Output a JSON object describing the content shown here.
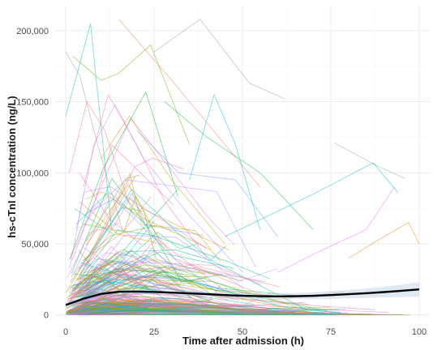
{
  "chart_data": {
    "type": "line",
    "xlabel": "Time after admission (h)",
    "ylabel": "hs-cTnI concentration (ng/L)",
    "xlim": [
      -3,
      103
    ],
    "ylim": [
      -3000,
      217000
    ],
    "x_ticks": [
      0,
      25,
      50,
      75,
      100
    ],
    "x_tick_labels": [
      "0",
      "25",
      "50",
      "75",
      "100"
    ],
    "y_ticks": [
      0,
      50000,
      100000,
      150000,
      200000
    ],
    "y_tick_labels": [
      "0",
      "50,000",
      "100,000",
      "150,000",
      "200,000"
    ],
    "grid": true,
    "legend": "none",
    "n_random_series": 300,
    "palette": [
      "#F8766D",
      "#E58700",
      "#C99800",
      "#A3A500",
      "#6BB100",
      "#00BA38",
      "#00BF7D",
      "#00C0AF",
      "#00BCD8",
      "#00B0F6",
      "#619CFF",
      "#B983FF",
      "#E76BF3",
      "#FD61D1",
      "#FF67A4",
      "#999999"
    ],
    "series": [
      {
        "x": [
          0,
          7,
          13
        ],
        "y": [
          140000,
          205000,
          60000
        ],
        "color": "#00C0AF"
      },
      {
        "x": [
          15,
          30,
          55
        ],
        "y": [
          208000,
          165000,
          90000
        ],
        "color": "#F8766D"
      },
      {
        "x": [
          25,
          38,
          52,
          62
        ],
        "y": [
          185000,
          208000,
          163000,
          152000
        ],
        "color": "#999999"
      },
      {
        "x": [
          2,
          10,
          15,
          24,
          35
        ],
        "y": [
          182000,
          165000,
          170000,
          190000,
          120000
        ],
        "color": "#6BB100"
      },
      {
        "x": [
          0,
          4,
          9,
          16
        ],
        "y": [
          185000,
          168000,
          120000,
          60000
        ],
        "color": "#999999"
      },
      {
        "x": [
          5,
          12,
          20,
          28,
          40
        ],
        "y": [
          90000,
          155000,
          120000,
          80000,
          40000
        ],
        "color": "#FF67A4"
      },
      {
        "x": [
          35,
          42,
          48,
          55
        ],
        "y": [
          95000,
          155000,
          120000,
          60000
        ],
        "color": "#00BCD8"
      },
      {
        "x": [
          76,
          88,
          96
        ],
        "y": [
          121000,
          105000,
          96000
        ],
        "color": "#999999"
      },
      {
        "x": [
          45,
          70,
          87,
          94
        ],
        "y": [
          55000,
          85000,
          107000,
          86000
        ],
        "color": "#00C0AF"
      },
      {
        "x": [
          80,
          90,
          97,
          100
        ],
        "y": [
          40000,
          55000,
          65000,
          50000
        ],
        "color": "#E58700"
      },
      {
        "x": [
          10,
          18,
          30,
          45
        ],
        "y": [
          110000,
          140000,
          95000,
          50000
        ],
        "color": "#C99800"
      },
      {
        "x": [
          3,
          8,
          14,
          22,
          35,
          50
        ],
        "y": [
          60000,
          120000,
          148000,
          110000,
          70000,
          30000
        ],
        "color": "#B983FF"
      },
      {
        "x": [
          60,
          72,
          85,
          93
        ],
        "y": [
          30000,
          45000,
          60000,
          90000
        ],
        "color": "#E76BF3"
      },
      {
        "x": [
          20,
          32,
          48,
          60
        ],
        "y": [
          130000,
          100000,
          95000,
          55000
        ],
        "color": "#619CFF"
      },
      {
        "x": [
          1,
          6,
          11,
          19
        ],
        "y": [
          100000,
          150000,
          130000,
          70000
        ],
        "color": "#F8766D"
      },
      {
        "x": [
          28,
          40,
          55,
          70
        ],
        "y": [
          150000,
          125000,
          100000,
          60000
        ],
        "color": "#00BA38"
      }
    ],
    "trend": {
      "name": "",
      "x": [
        0,
        5,
        10,
        15,
        20,
        25,
        30,
        35,
        40,
        45,
        50,
        55,
        60,
        65,
        70,
        75,
        80,
        85,
        90,
        95,
        100
      ],
      "y": [
        7000,
        11500,
        14800,
        16300,
        16500,
        16200,
        15700,
        15200,
        14600,
        14000,
        13500,
        13200,
        13100,
        13200,
        13500,
        14000,
        14600,
        15300,
        16100,
        17000,
        18000
      ],
      "band_lower": [
        4500,
        10000,
        13500,
        15000,
        15200,
        15000,
        14500,
        13900,
        13200,
        12500,
        11900,
        11400,
        11100,
        11000,
        11100,
        11300,
        11600,
        12000,
        12400,
        12700,
        13000
      ],
      "band_upper": [
        9500,
        13000,
        16100,
        17600,
        17800,
        17400,
        16900,
        16500,
        16000,
        15500,
        15100,
        15000,
        15100,
        15400,
        15900,
        16700,
        17600,
        18600,
        19800,
        21300,
        23000
      ],
      "color": "#000000",
      "band_color": "#b9cfe6"
    }
  }
}
